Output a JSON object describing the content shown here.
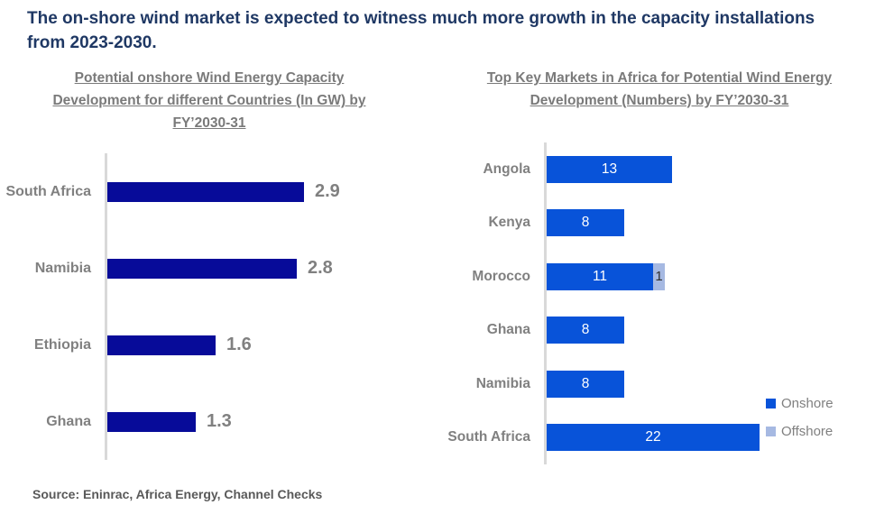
{
  "page": {
    "title": "The on-shore wind market is expected to witness much more growth in the capacity installations from 2023-2030.",
    "source": "Source: Eninrac, Africa Energy, Channel Checks"
  },
  "colors": {
    "headline_navy": "#1F3864",
    "onshore_gw_bar": "#070B99",
    "onshore_count_bar": "#0853D9",
    "offshore_bar": "#A6B9E2",
    "label_gray": "#808080",
    "title_gray": "#7A7A7A",
    "source_gray": "#595959",
    "axis_line": "#D9D9D9"
  },
  "chart_data": [
    {
      "type": "bar",
      "orientation": "horizontal",
      "title": "Potential onshore Wind Energy Capacity Development for different Countries (In GW) by FY’2030-31",
      "categories": [
        "South Africa",
        "Namibia",
        "Ethiopia",
        "Ghana"
      ],
      "values": [
        2.9,
        2.8,
        1.6,
        1.3
      ],
      "xlim": [
        0,
        3.2
      ],
      "grid": false,
      "value_labels": "outside-right",
      "legend_position": "none"
    },
    {
      "type": "bar",
      "orientation": "horizontal",
      "stacked": true,
      "title": "Top Key Markets in Africa for Potential Wind Energy Development (Numbers) by FY’2030-31",
      "categories": [
        "Angola",
        "Kenya",
        "Morocco",
        "Ghana",
        "Namibia",
        "South Africa"
      ],
      "series": [
        {
          "name": "Onshore",
          "values": [
            13,
            8,
            11,
            8,
            8,
            22
          ]
        },
        {
          "name": "Offshore",
          "values": [
            0,
            0,
            1,
            0,
            0,
            0
          ]
        }
      ],
      "xlim": [
        0,
        24
      ],
      "grid": false,
      "value_labels": "inside-center",
      "legend_position": "right"
    }
  ]
}
